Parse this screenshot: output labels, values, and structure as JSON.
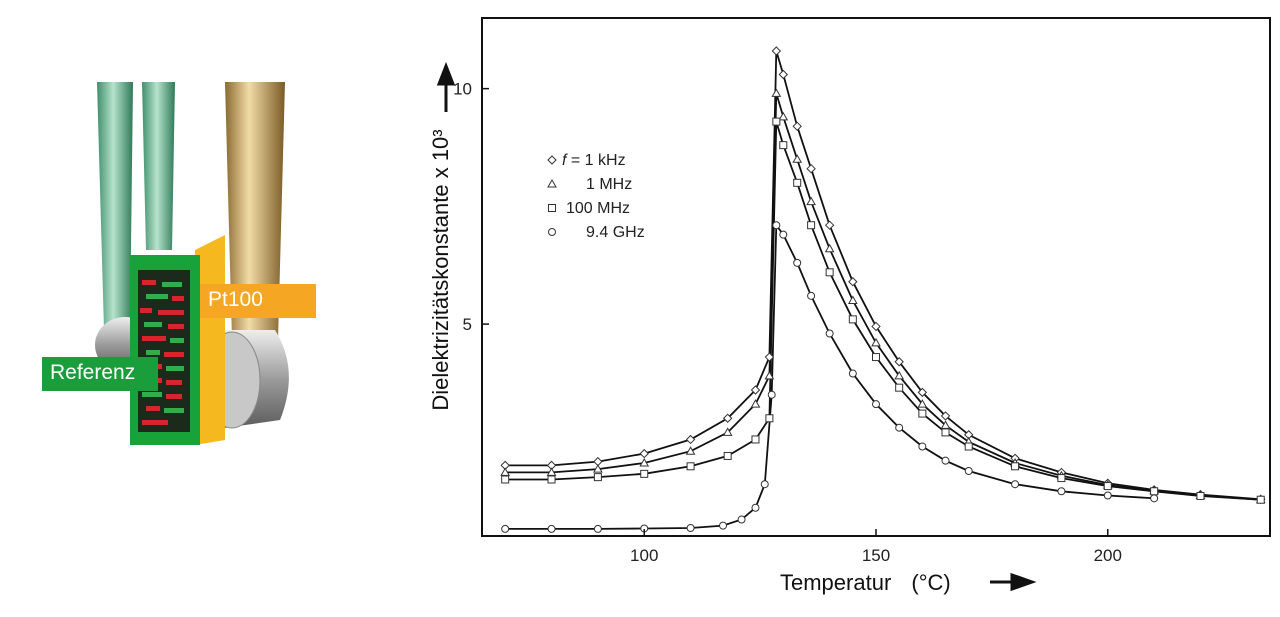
{
  "sensor_figure": {
    "pt_label": "Pt100",
    "ref_label": "Referenz",
    "colors": {
      "pt": "#f5a623",
      "ref": "#1a9e3c",
      "wire_green": "#5fae8a",
      "wire_gold": "#c9a35a"
    }
  },
  "chart_data": {
    "type": "line",
    "xlabel": "Temperatur",
    "xunit": "(°C)",
    "ylabel": "Dielektrizitätskonstante x 10³",
    "xlim": [
      65,
      235
    ],
    "ylim": [
      0.5,
      11.5
    ],
    "x_ticks": [
      100,
      150,
      200
    ],
    "y_ticks": [
      5,
      10
    ],
    "legend_position": "upper-left",
    "legend": [
      {
        "prefix": "f",
        "text": "= 1 kHz",
        "marker": "diamond"
      },
      {
        "prefix": "",
        "text": "1 MHz",
        "marker": "triangle"
      },
      {
        "prefix": "",
        "text": "100 MHz",
        "marker": "square"
      },
      {
        "prefix": "",
        "text": "9.4 GHz",
        "marker": "circle"
      }
    ],
    "series": [
      {
        "marker": "diamond",
        "x": [
          70,
          80,
          90,
          100,
          110,
          118,
          124,
          127,
          128.5,
          130,
          133,
          136,
          140,
          145,
          150,
          155,
          160,
          165,
          170,
          180,
          190,
          200,
          210,
          220,
          233
        ],
        "y": [
          2.0,
          2.0,
          2.08,
          2.25,
          2.55,
          3.0,
          3.6,
          4.3,
          10.8,
          10.3,
          9.2,
          8.3,
          7.1,
          5.9,
          4.95,
          4.2,
          3.55,
          3.05,
          2.65,
          2.15,
          1.85,
          1.62,
          1.48,
          1.38,
          1.28
        ]
      },
      {
        "marker": "triangle",
        "x": [
          70,
          80,
          90,
          100,
          110,
          118,
          124,
          127,
          128.5,
          130,
          133,
          136,
          140,
          145,
          150,
          155,
          160,
          165,
          170,
          180,
          190,
          200,
          210,
          220,
          233
        ],
        "y": [
          1.85,
          1.85,
          1.92,
          2.05,
          2.3,
          2.7,
          3.3,
          3.9,
          9.9,
          9.4,
          8.5,
          7.6,
          6.6,
          5.5,
          4.6,
          3.9,
          3.3,
          2.85,
          2.5,
          2.05,
          1.78,
          1.58,
          1.46,
          1.36,
          1.27
        ]
      },
      {
        "marker": "square",
        "x": [
          70,
          80,
          90,
          100,
          110,
          118,
          124,
          127,
          128.5,
          130,
          133,
          136,
          140,
          145,
          150,
          155,
          160,
          165,
          170,
          180,
          190,
          200,
          210,
          220,
          233
        ],
        "y": [
          1.7,
          1.7,
          1.75,
          1.82,
          1.98,
          2.2,
          2.55,
          3.0,
          9.3,
          8.8,
          8.0,
          7.1,
          6.1,
          5.1,
          4.3,
          3.65,
          3.1,
          2.7,
          2.4,
          1.98,
          1.73,
          1.56,
          1.45,
          1.35,
          1.27
        ]
      },
      {
        "marker": "circle",
        "x": [
          70,
          80,
          90,
          100,
          110,
          117,
          121,
          124,
          126,
          127.5,
          128.5,
          130,
          133,
          136,
          140,
          145,
          150,
          155,
          160,
          165,
          170,
          180,
          190,
          200,
          210
        ],
        "y": [
          0.65,
          0.65,
          0.65,
          0.66,
          0.67,
          0.72,
          0.85,
          1.1,
          1.6,
          3.5,
          7.1,
          6.9,
          6.3,
          5.6,
          4.8,
          3.95,
          3.3,
          2.8,
          2.4,
          2.1,
          1.88,
          1.6,
          1.45,
          1.36,
          1.3
        ]
      }
    ]
  }
}
